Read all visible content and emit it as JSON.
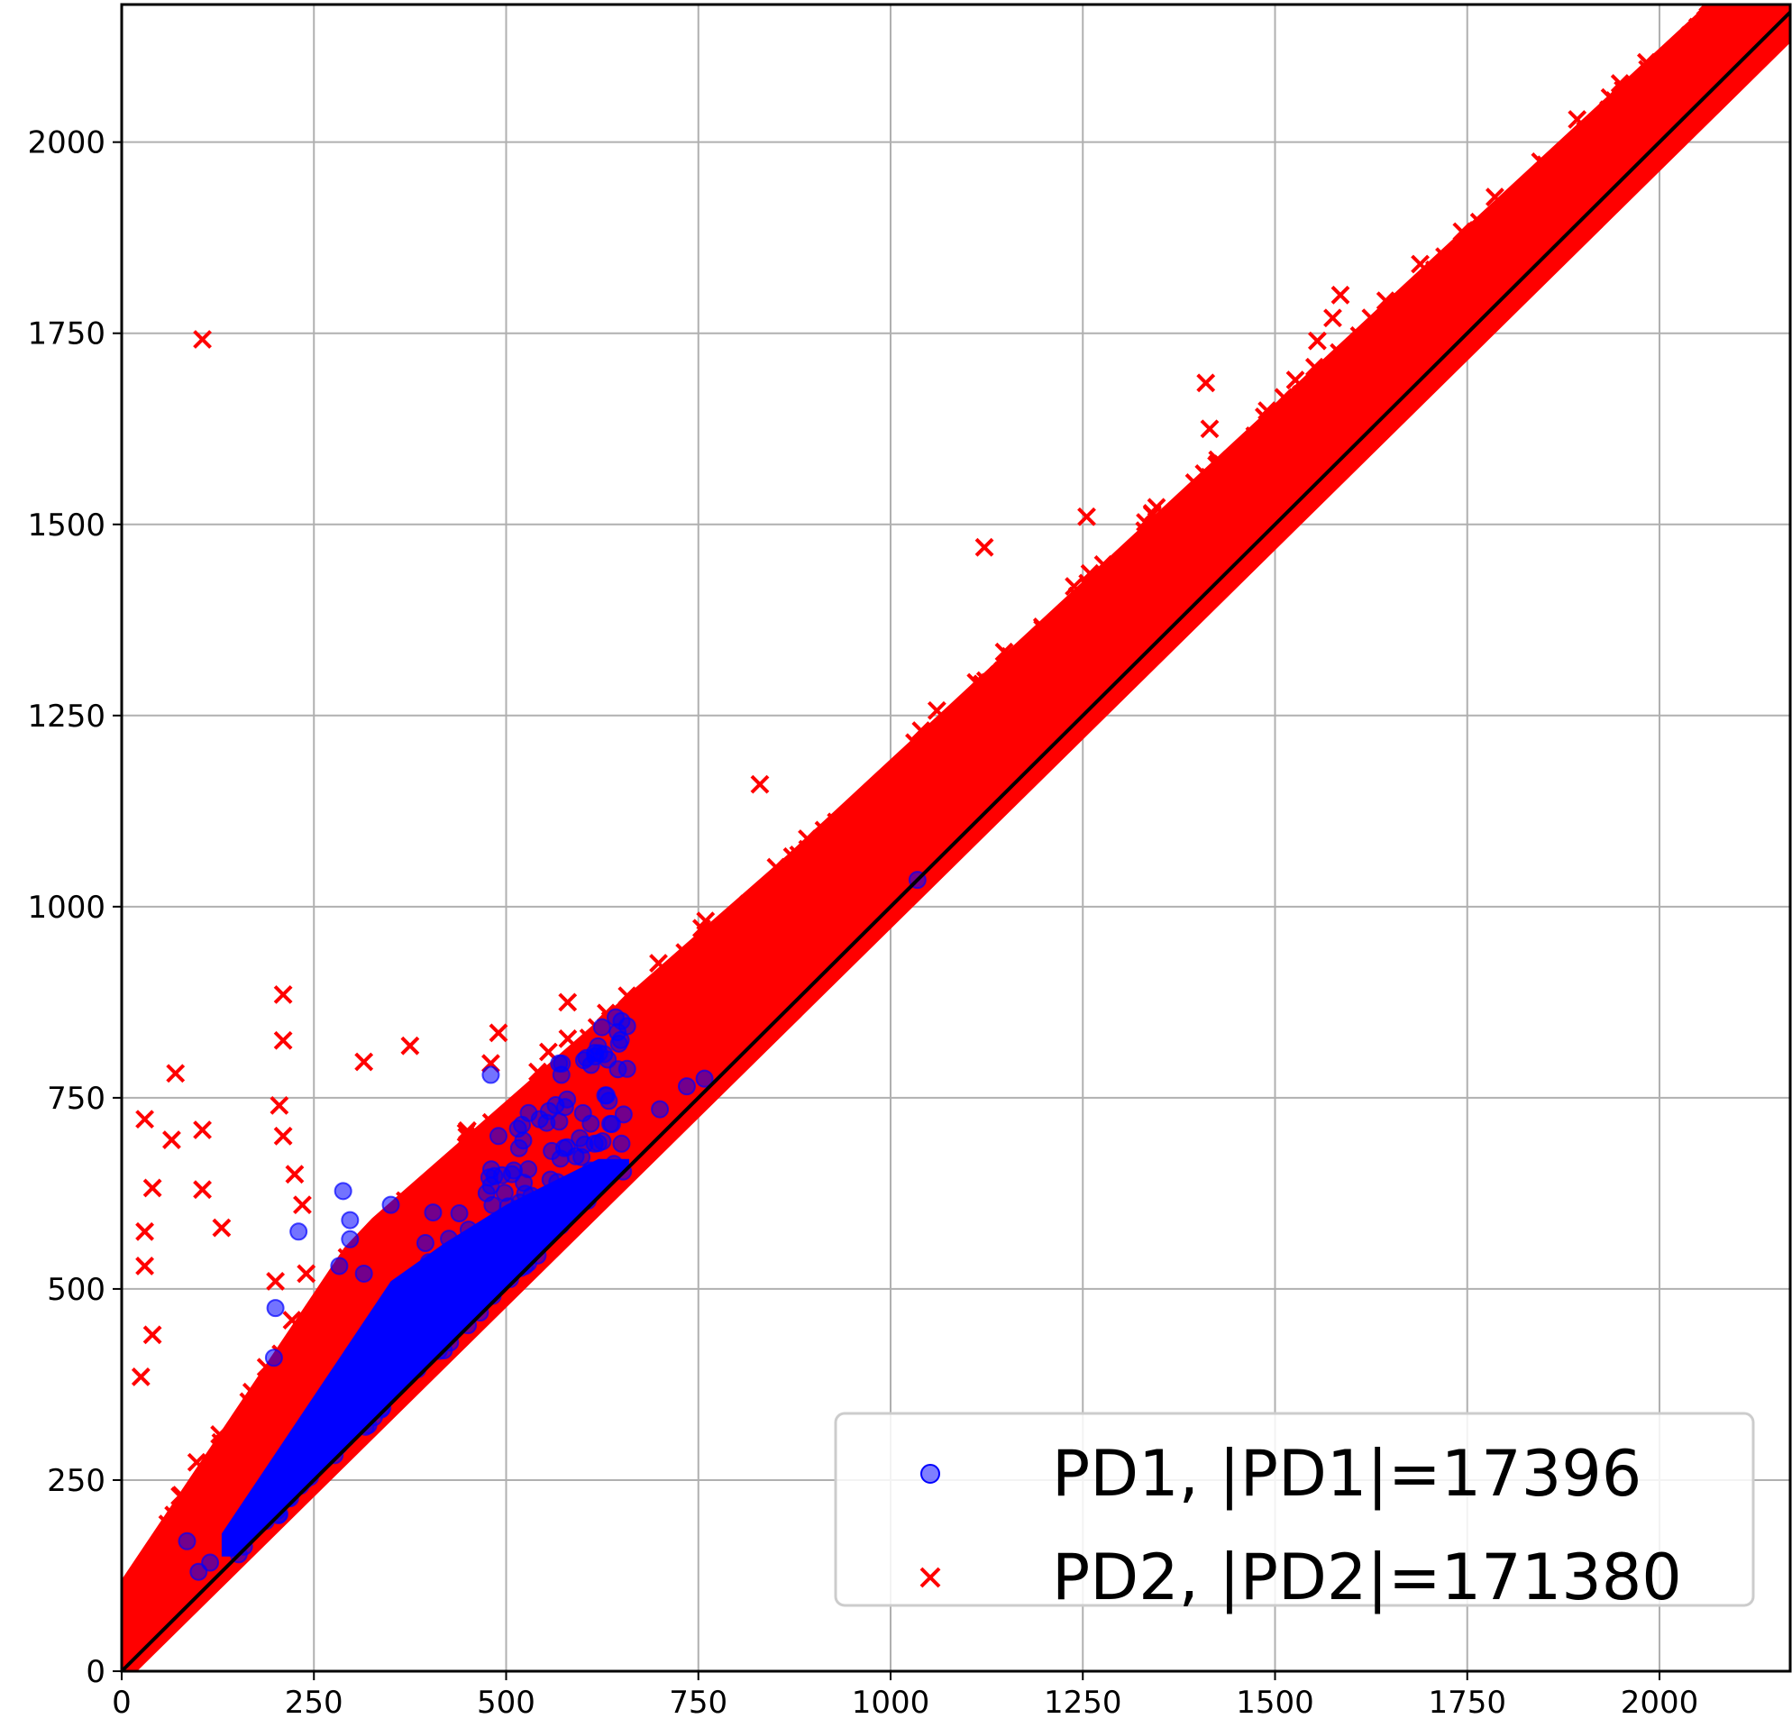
{
  "chart_data": {
    "type": "scatter",
    "title": "",
    "xlabel": "",
    "ylabel": "",
    "xlim": [
      0,
      2170
    ],
    "ylim": [
      0,
      2180
    ],
    "x_ticks": [
      0,
      250,
      500,
      750,
      1000,
      1250,
      1500,
      1750,
      2000
    ],
    "y_ticks": [
      0,
      250,
      500,
      750,
      1000,
      1250,
      1500,
      1750,
      2000
    ],
    "grid": true,
    "legend_position": "lower-right",
    "reference_line": {
      "from": [
        0,
        0
      ],
      "to": [
        2170,
        2170
      ],
      "color": "#000000"
    },
    "series": [
      {
        "name": "PD1, |PD1|=17396",
        "marker": "circle",
        "color": "#0000ff",
        "count": 17396,
        "dense_region": {
          "x_min": 150,
          "x_max": 660,
          "band_min_offset": 0,
          "band_max_offset": 230
        },
        "outliers": [
          [
            230,
            575
          ],
          [
            283,
            530
          ],
          [
            288,
            628
          ],
          [
            297,
            590
          ],
          [
            297,
            565
          ],
          [
            200,
            475
          ],
          [
            198,
            410
          ],
          [
            85,
            170
          ],
          [
            100,
            130
          ],
          [
            115,
            142
          ],
          [
            490,
            700
          ],
          [
            480,
            780
          ],
          [
            600,
            730
          ],
          [
            615,
            690
          ],
          [
            650,
            690
          ],
          [
            700,
            735
          ],
          [
            735,
            765
          ],
          [
            758,
            775
          ],
          [
            1035,
            1035
          ],
          [
            350,
            610
          ],
          [
            405,
            600
          ],
          [
            510,
            655
          ],
          [
            395,
            560
          ],
          [
            450,
            540
          ],
          [
            315,
            520
          ]
        ]
      },
      {
        "name": "PD2, |PD2|=171380",
        "marker": "x",
        "color": "#ff0000",
        "count": 171380,
        "dense_region": {
          "x_min": 0,
          "x_max": 2170,
          "band_min_offset": 0,
          "band_max_offset": 260
        },
        "outliers": [
          [
            105,
            1742
          ],
          [
            1410,
            1685
          ],
          [
            1415,
            1625
          ],
          [
            1122,
            1470
          ],
          [
            1255,
            1510
          ],
          [
            830,
            1160
          ],
          [
            210,
            885
          ],
          [
            210,
            825
          ],
          [
            315,
            797
          ],
          [
            375,
            818
          ],
          [
            70,
            782
          ],
          [
            30,
            722
          ],
          [
            65,
            695
          ],
          [
            105,
            708
          ],
          [
            40,
            632
          ],
          [
            205,
            740
          ],
          [
            210,
            700
          ],
          [
            225,
            650
          ],
          [
            235,
            610
          ],
          [
            105,
            630
          ],
          [
            130,
            580
          ],
          [
            30,
            575
          ],
          [
            30,
            530
          ],
          [
            240,
            520
          ],
          [
            200,
            510
          ],
          [
            40,
            440
          ],
          [
            25,
            385
          ],
          [
            490,
            835
          ],
          [
            580,
            875
          ],
          [
            555,
            810
          ],
          [
            480,
            795
          ],
          [
            820,
            1000
          ],
          [
            850,
            990
          ],
          [
            920,
            1035
          ],
          [
            950,
            1110
          ],
          [
            1010,
            1090
          ],
          [
            1080,
            1140
          ],
          [
            1110,
            1235
          ],
          [
            1210,
            1305
          ],
          [
            1240,
            1355
          ],
          [
            1300,
            1400
          ],
          [
            1340,
            1470
          ],
          [
            1400,
            1535
          ],
          [
            1450,
            1560
          ],
          [
            1495,
            1580
          ],
          [
            1555,
            1740
          ],
          [
            1575,
            1770
          ],
          [
            1585,
            1800
          ],
          [
            1640,
            1760
          ],
          [
            1700,
            1820
          ],
          [
            1735,
            1855
          ],
          [
            1770,
            1880
          ],
          [
            1800,
            1850
          ],
          [
            1850,
            1905
          ],
          [
            1880,
            1970
          ],
          [
            1935,
            2000
          ],
          [
            1995,
            2050
          ],
          [
            2045,
            2080
          ],
          [
            2075,
            2090
          ],
          [
            2095,
            2130
          ],
          [
            2140,
            2180
          ],
          [
            1740,
            1780
          ],
          [
            1855,
            1860
          ],
          [
            1920,
            1935
          ],
          [
            1970,
            2030
          ],
          [
            2005,
            2040
          ],
          [
            1395,
            1450
          ],
          [
            1140,
            1260
          ],
          [
            990,
            1060
          ]
        ]
      }
    ]
  }
}
